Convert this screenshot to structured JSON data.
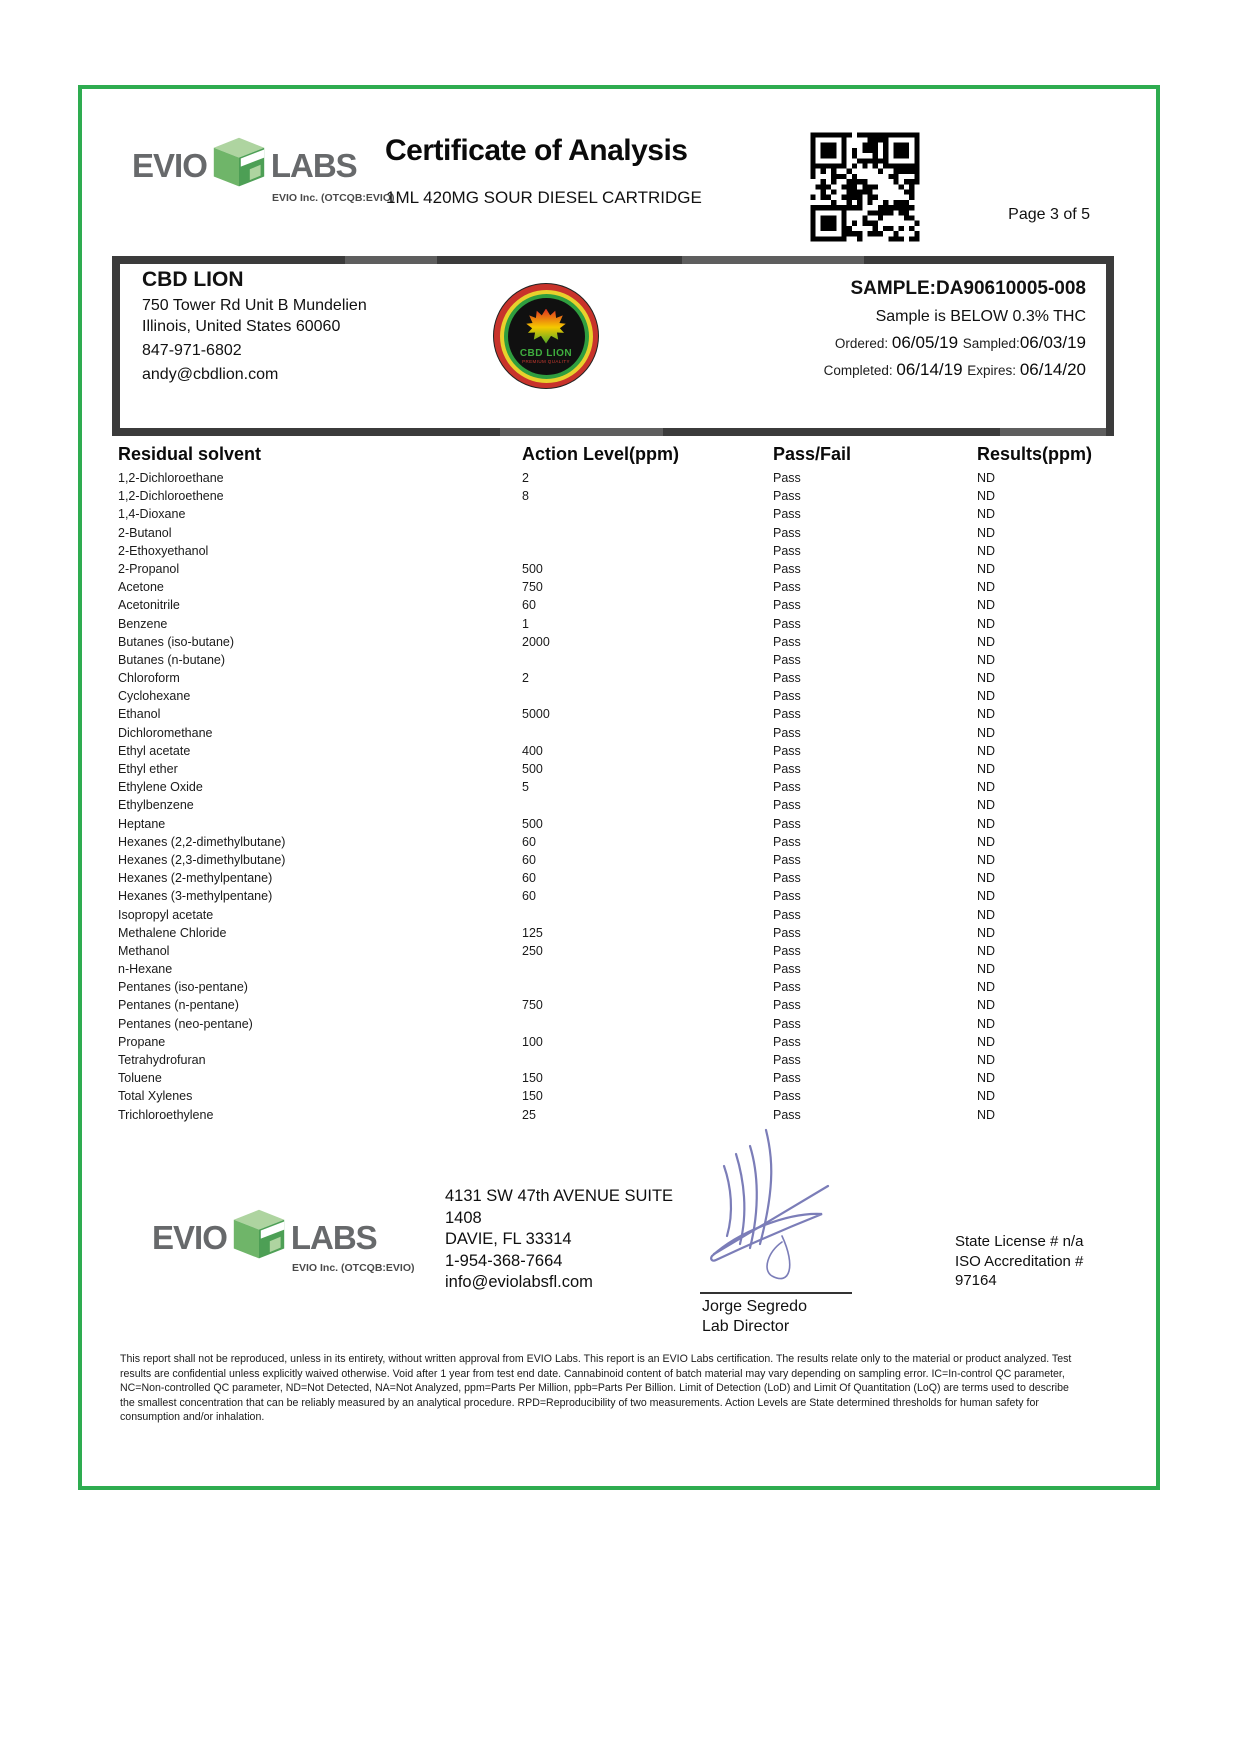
{
  "header": {
    "brand": {
      "word_left": "EVIO",
      "word_right": "LABS",
      "tagline": "EVIO Inc. (OTCQB:EVIO)"
    },
    "title": "Certificate of Analysis",
    "subtitle": "1ML 420MG SOUR DIESEL CARTRIDGE",
    "page_label": "Page 3 of 5"
  },
  "client": {
    "name": "CBD LION",
    "address_line1": "750 Tower Rd Unit B Mundelien",
    "address_line2": "Illinois, United States 60060",
    "phone": "847-971-6802",
    "email": "andy@cbdlion.com",
    "logo_text": "CBD LION",
    "logo_subtext": "PREMIUM QUALITY"
  },
  "sample": {
    "id_label": "SAMPLE:DA90610005-008",
    "thc_note": "Sample is BELOW 0.3% THC",
    "ordered_label": "Ordered: ",
    "ordered": "06/05/19 ",
    "sampled_label": "Sampled:",
    "sampled": "06/03/19",
    "completed_label": "Completed: ",
    "completed": "06/14/19 ",
    "expires_label": "Expires: ",
    "expires": "06/14/20"
  },
  "results_table": {
    "columns": [
      "Residual solvent",
      "Action Level(ppm)",
      "Pass/Fail",
      "Results(ppm)"
    ],
    "rows": [
      {
        "solvent": "1,2-Dichloroethane",
        "action_level": "2",
        "pass_fail": "Pass",
        "result": "ND"
      },
      {
        "solvent": "1,2-Dichloroethene",
        "action_level": "8",
        "pass_fail": "Pass",
        "result": "ND"
      },
      {
        "solvent": "1,4-Dioxane",
        "action_level": "",
        "pass_fail": "Pass",
        "result": "ND"
      },
      {
        "solvent": "2-Butanol",
        "action_level": "",
        "pass_fail": "Pass",
        "result": "ND"
      },
      {
        "solvent": "2-Ethoxyethanol",
        "action_level": "",
        "pass_fail": "Pass",
        "result": "ND"
      },
      {
        "solvent": "2-Propanol",
        "action_level": "500",
        "pass_fail": "Pass",
        "result": "ND"
      },
      {
        "solvent": "Acetone",
        "action_level": "750",
        "pass_fail": "Pass",
        "result": "ND"
      },
      {
        "solvent": "Acetonitrile",
        "action_level": "60",
        "pass_fail": "Pass",
        "result": "ND"
      },
      {
        "solvent": "Benzene",
        "action_level": "1",
        "pass_fail": "Pass",
        "result": "ND"
      },
      {
        "solvent": "Butanes (iso-butane)",
        "action_level": "2000",
        "pass_fail": "Pass",
        "result": "ND"
      },
      {
        "solvent": "Butanes (n-butane)",
        "action_level": "",
        "pass_fail": "Pass",
        "result": "ND"
      },
      {
        "solvent": "Chloroform",
        "action_level": "2",
        "pass_fail": "Pass",
        "result": "ND"
      },
      {
        "solvent": "Cyclohexane",
        "action_level": "",
        "pass_fail": "Pass",
        "result": "ND"
      },
      {
        "solvent": "Ethanol",
        "action_level": "5000",
        "pass_fail": "Pass",
        "result": "ND"
      },
      {
        "solvent": "Dichloromethane",
        "action_level": "",
        "pass_fail": "Pass",
        "result": "ND"
      },
      {
        "solvent": "Ethyl acetate",
        "action_level": "400",
        "pass_fail": "Pass",
        "result": "ND"
      },
      {
        "solvent": "Ethyl ether",
        "action_level": "500",
        "pass_fail": "Pass",
        "result": "ND"
      },
      {
        "solvent": "Ethylene Oxide",
        "action_level": "5",
        "pass_fail": "Pass",
        "result": "ND"
      },
      {
        "solvent": "Ethylbenzene",
        "action_level": "",
        "pass_fail": "Pass",
        "result": "ND"
      },
      {
        "solvent": "Heptane",
        "action_level": "500",
        "pass_fail": "Pass",
        "result": "ND"
      },
      {
        "solvent": "Hexanes (2,2-dimethylbutane)",
        "action_level": "60",
        "pass_fail": "Pass",
        "result": "ND"
      },
      {
        "solvent": "Hexanes (2,3-dimethylbutane)",
        "action_level": "60",
        "pass_fail": "Pass",
        "result": "ND"
      },
      {
        "solvent": "Hexanes (2-methylpentane)",
        "action_level": "60",
        "pass_fail": "Pass",
        "result": "ND"
      },
      {
        "solvent": "Hexanes (3-methylpentane)",
        "action_level": "60",
        "pass_fail": "Pass",
        "result": "ND"
      },
      {
        "solvent": "Isopropyl acetate",
        "action_level": "",
        "pass_fail": "Pass",
        "result": "ND"
      },
      {
        "solvent": "Methalene Chloride",
        "action_level": "125",
        "pass_fail": "Pass",
        "result": "ND"
      },
      {
        "solvent": "Methanol",
        "action_level": "250",
        "pass_fail": "Pass",
        "result": "ND"
      },
      {
        "solvent": "n-Hexane",
        "action_level": "",
        "pass_fail": "Pass",
        "result": "ND"
      },
      {
        "solvent": "Pentanes (iso-pentane)",
        "action_level": "",
        "pass_fail": "Pass",
        "result": "ND"
      },
      {
        "solvent": "Pentanes (n-pentane)",
        "action_level": "750",
        "pass_fail": "Pass",
        "result": "ND"
      },
      {
        "solvent": "Pentanes (neo-pentane)",
        "action_level": "",
        "pass_fail": "Pass",
        "result": "ND"
      },
      {
        "solvent": "Propane",
        "action_level": "100",
        "pass_fail": "Pass",
        "result": "ND"
      },
      {
        "solvent": "Tetrahydrofuran",
        "action_level": "",
        "pass_fail": "Pass",
        "result": "ND"
      },
      {
        "solvent": "Toluene",
        "action_level": "150",
        "pass_fail": "Pass",
        "result": "ND"
      },
      {
        "solvent": "Total Xylenes",
        "action_level": "150",
        "pass_fail": "Pass",
        "result": "ND"
      },
      {
        "solvent": "Trichloroethylene",
        "action_level": "25",
        "pass_fail": "Pass",
        "result": "ND"
      }
    ]
  },
  "footer": {
    "brand": {
      "word_left": "EVIO",
      "word_right": "LABS",
      "tagline": "EVIO Inc. (OTCQB:EVIO)"
    },
    "lab_address": [
      "4131 SW 47th AVENUE SUITE",
      "1408",
      "DAVIE, FL 33314",
      "1-954-368-7664",
      "info@eviolabsfl.com"
    ],
    "signer_name": "Jorge Segredo",
    "signer_title": "Lab Director",
    "license_line1": "State License # n/a",
    "license_line2": "ISO Accreditation #",
    "license_line3": "97164"
  },
  "disclaimer": "This report shall not be reproduced, unless in its entirety, without written approval from EVIO Labs. This report is an EVIO Labs certification. The results relate only to the material or product analyzed. Test results are confidential unless explicitly waived otherwise. Void after 1 year from test end date. Cannabinoid content of batch material may vary depending on sampling error. IC=In-control QC parameter, NC=Non-controlled QC parameter, ND=Not Detected, NA=Not Analyzed, ppm=Parts Per Million, ppb=Parts Per Billion. Limit of Detection (LoD) and Limit Of Quantitation (LoQ) are terms used to describe the smallest concentration that can be reliably measured by an analytical procedure. RPD=Reproducibility of two measurements. Action Levels are State determined thresholds for human safety for consumption and/or inhalation.",
  "colors": {
    "frame_green": "#2eac50",
    "info_border_dark": "#3b3b3b",
    "brand_gray": "#67696b",
    "cube_green_light": "#aed4a0",
    "cube_green_mid": "#6fb569",
    "cube_green_dark": "#4d9f55",
    "signature_ink": "#7b7db8",
    "badge_red": "#c8332b",
    "badge_yellow": "#e8d12c",
    "badge_green": "#2f9e3f"
  }
}
